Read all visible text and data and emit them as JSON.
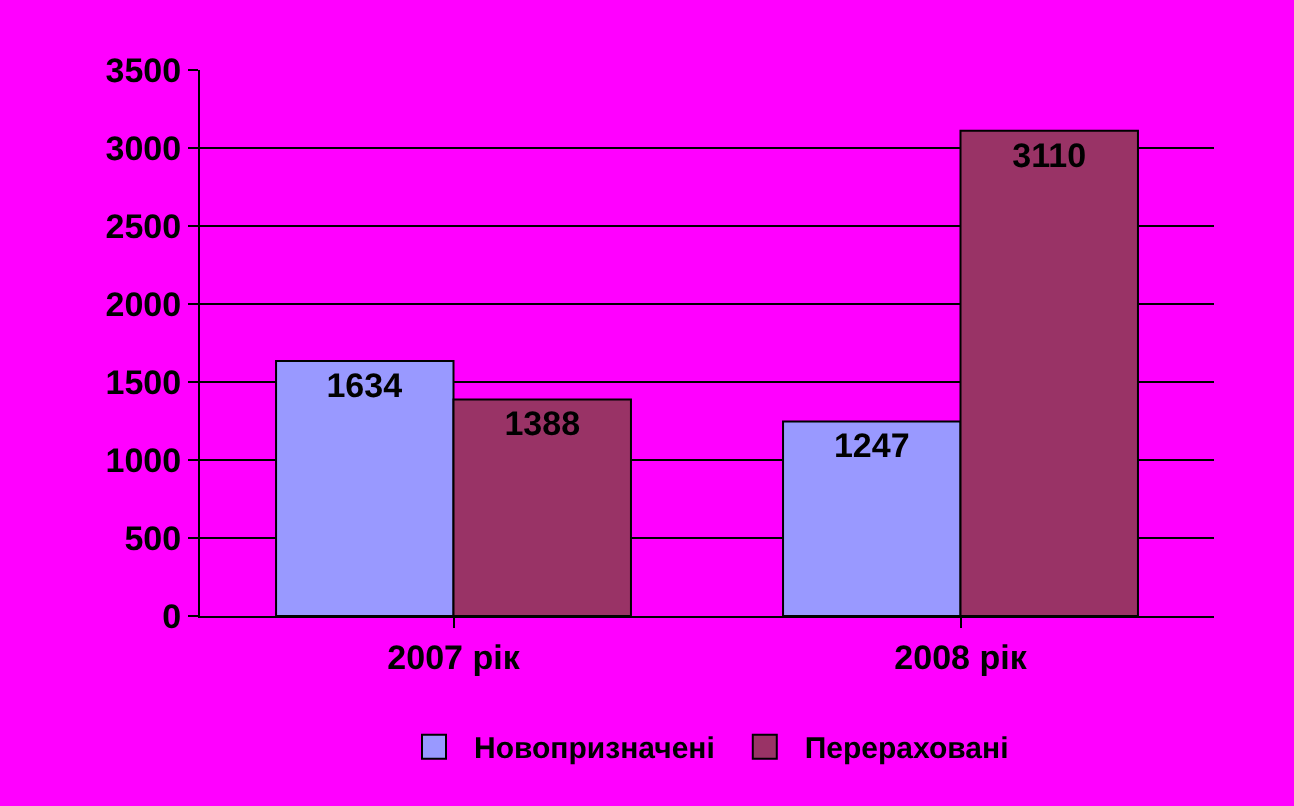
{
  "chart_data": {
    "type": "bar",
    "categories": [
      "2007 рік",
      "2008 рік"
    ],
    "series": [
      {
        "name": "Новопризначені",
        "color": "#9999ff",
        "values": [
          1634,
          1247
        ]
      },
      {
        "name": "Перераховані",
        "color": "#993366",
        "values": [
          1388,
          3110
        ]
      }
    ],
    "ylim": [
      0,
      3500
    ],
    "yticks": [
      0,
      500,
      1000,
      1500,
      2000,
      2500,
      3000,
      3500
    ],
    "grid": "y",
    "legend": "bottom",
    "data_labels": true
  }
}
